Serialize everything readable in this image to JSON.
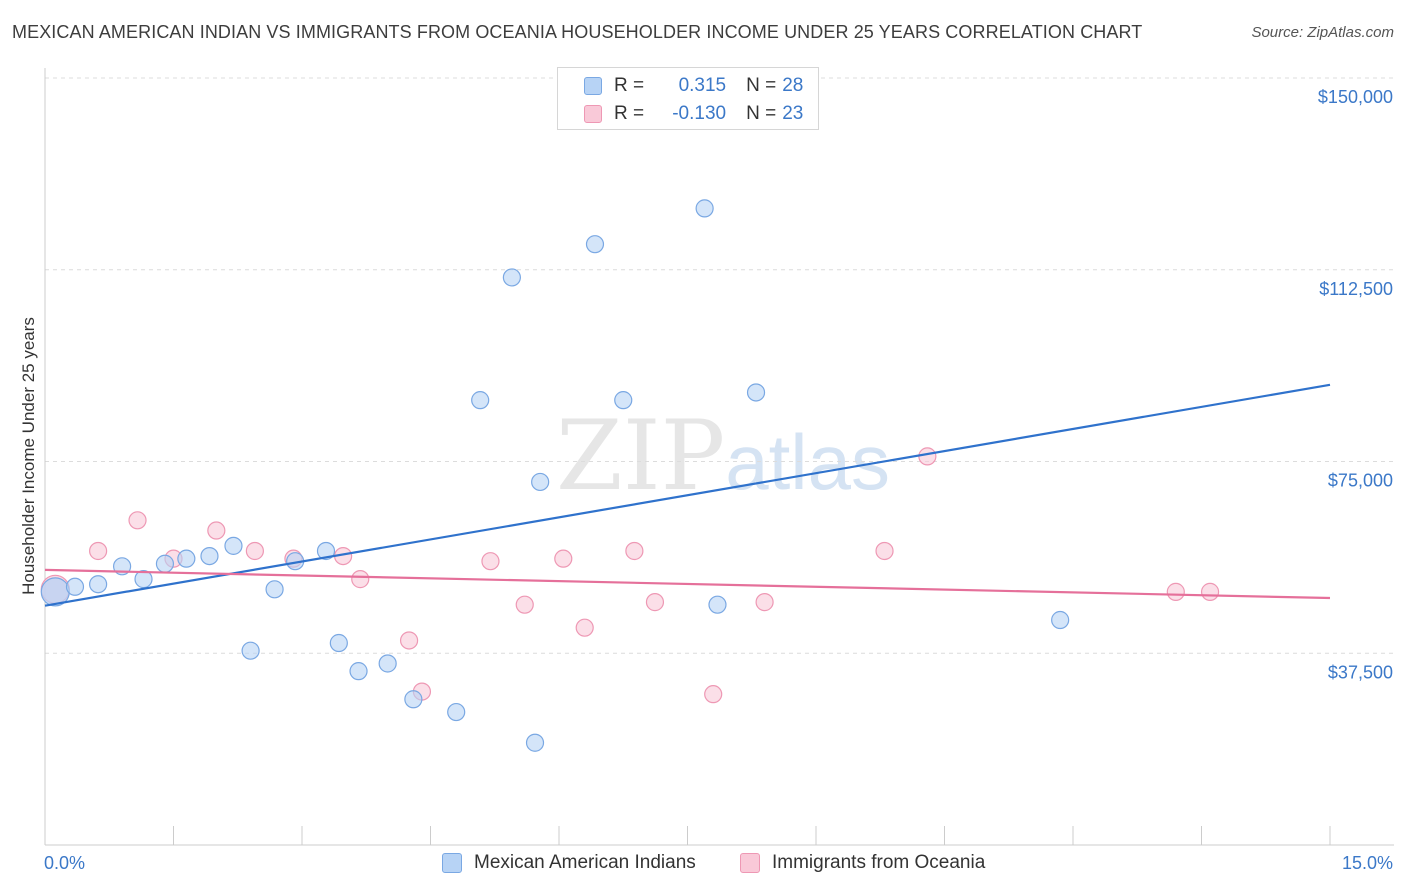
{
  "title": "MEXICAN AMERICAN INDIAN VS IMMIGRANTS FROM OCEANIA HOUSEHOLDER INCOME UNDER 25 YEARS CORRELATION CHART",
  "source": "Source: ZipAtlas.com",
  "watermark": {
    "zip": "ZIP",
    "atlas": "atlas"
  },
  "legend": [
    {
      "r_label": "R = ",
      "r_value": "0.315",
      "n_label": "N = ",
      "n_value": "28"
    },
    {
      "r_label": "R = ",
      "r_value": "-0.130",
      "n_label": "N = ",
      "n_value": "23"
    }
  ],
  "chart_data": {
    "type": "scatter",
    "title": "MEXICAN AMERICAN INDIAN VS IMMIGRANTS FROM OCEANIA HOUSEHOLDER INCOME UNDER 25 YEARS CORRELATION CHART",
    "xlabel": "",
    "ylabel": "Householder Income Under 25 years",
    "xlim": [
      0,
      15
    ],
    "ylim": [
      0,
      150000
    ],
    "x_tick_labels": [
      "0.0%",
      "15.0%"
    ],
    "y_ticks": [
      37500,
      75000,
      112500,
      150000
    ],
    "y_tick_labels": [
      "$37,500",
      "$75,000",
      "$112,500",
      "$150,000"
    ],
    "colors": {
      "series1_fill": "#b7d3f5",
      "series1_stroke": "#7aa8e3",
      "series1_line": "#2f72cc",
      "series2_fill": "#f9c9d8",
      "series2_stroke": "#ee98b4",
      "series2_line": "#e5709a",
      "grid": "#dcdcdc",
      "axis": "#cccccc"
    },
    "series": [
      {
        "name": "Mexican American Indians",
        "points": [
          {
            "x": 0.12,
            "y": 49500,
            "big": true
          },
          {
            "x": 0.35,
            "y": 50500
          },
          {
            "x": 0.62,
            "y": 51000
          },
          {
            "x": 0.9,
            "y": 54500
          },
          {
            "x": 1.15,
            "y": 52000
          },
          {
            "x": 1.4,
            "y": 55000
          },
          {
            "x": 1.65,
            "y": 56000
          },
          {
            "x": 1.92,
            "y": 56500
          },
          {
            "x": 2.2,
            "y": 58500
          },
          {
            "x": 2.4,
            "y": 38000
          },
          {
            "x": 2.68,
            "y": 50000
          },
          {
            "x": 2.92,
            "y": 55500
          },
          {
            "x": 3.28,
            "y": 57500
          },
          {
            "x": 3.43,
            "y": 39500
          },
          {
            "x": 3.66,
            "y": 34000
          },
          {
            "x": 4.0,
            "y": 35500
          },
          {
            "x": 4.3,
            "y": 28500
          },
          {
            "x": 4.8,
            "y": 26000
          },
          {
            "x": 5.08,
            "y": 87000
          },
          {
            "x": 5.45,
            "y": 111000
          },
          {
            "x": 5.78,
            "y": 71000
          },
          {
            "x": 5.72,
            "y": 20000
          },
          {
            "x": 6.42,
            "y": 117500
          },
          {
            "x": 6.75,
            "y": 87000
          },
          {
            "x": 7.7,
            "y": 124500
          },
          {
            "x": 7.85,
            "y": 47000
          },
          {
            "x": 8.3,
            "y": 88500
          },
          {
            "x": 11.85,
            "y": 44000
          }
        ],
        "trend": {
          "x": [
            0,
            15
          ],
          "y": [
            46800,
            90000
          ]
        }
      },
      {
        "name": "Immigrants from Oceania",
        "points": [
          {
            "x": 0.12,
            "y": 50000,
            "big": true
          },
          {
            "x": 0.62,
            "y": 57500
          },
          {
            "x": 1.08,
            "y": 63500
          },
          {
            "x": 1.5,
            "y": 56000
          },
          {
            "x": 2.0,
            "y": 61500
          },
          {
            "x": 2.45,
            "y": 57500
          },
          {
            "x": 2.9,
            "y": 56000
          },
          {
            "x": 3.48,
            "y": 56500
          },
          {
            "x": 3.68,
            "y": 52000
          },
          {
            "x": 4.25,
            "y": 40000
          },
          {
            "x": 4.4,
            "y": 30000
          },
          {
            "x": 5.2,
            "y": 55500
          },
          {
            "x": 5.6,
            "y": 47000
          },
          {
            "x": 6.05,
            "y": 56000
          },
          {
            "x": 6.3,
            "y": 42500
          },
          {
            "x": 6.88,
            "y": 57500
          },
          {
            "x": 7.12,
            "y": 47500
          },
          {
            "x": 7.8,
            "y": 29500
          },
          {
            "x": 8.4,
            "y": 47500
          },
          {
            "x": 9.8,
            "y": 57500
          },
          {
            "x": 10.3,
            "y": 76000
          },
          {
            "x": 13.2,
            "y": 49500
          },
          {
            "x": 13.6,
            "y": 49500
          }
        ],
        "trend": {
          "x": [
            0,
            15
          ],
          "y": [
            53800,
            48300
          ]
        }
      }
    ]
  }
}
